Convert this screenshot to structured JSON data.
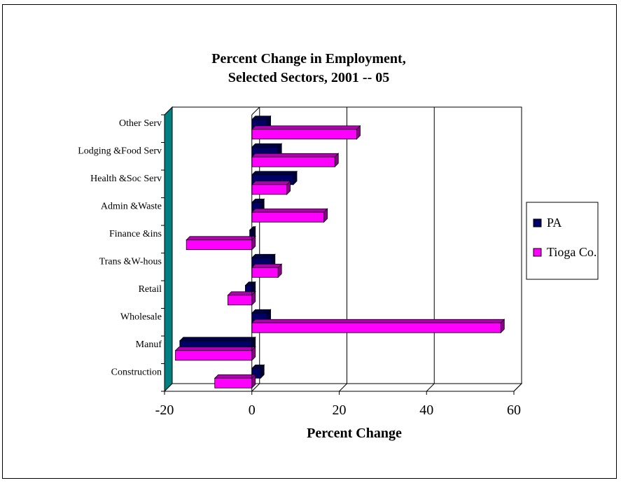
{
  "chart_data": {
    "type": "bar",
    "orientation": "horizontal",
    "title": [
      "Percent Change in Employment,",
      "Selected Sectors, 2001 -- 05"
    ],
    "xlabel": "Percent Change",
    "ylabel": "",
    "xlim": [
      -20,
      60
    ],
    "xticks": [
      -20,
      0,
      20,
      40,
      60
    ],
    "grid": true,
    "legend_position": "right",
    "categories": [
      "Other Serv",
      "Lodging &Food Serv",
      "Health &Soc Serv",
      "Admin &Waste",
      "Finance &ins",
      "Trans &W-hous",
      "Retail",
      "Wholesale",
      "Manuf",
      "Construction"
    ],
    "series": [
      {
        "name": "PA",
        "color": "#000066",
        "values": [
          3.5,
          6,
          9.5,
          2,
          -0.5,
          4.5,
          -1.5,
          3.5,
          -16.5,
          2
        ]
      },
      {
        "name": "Tioga Co.",
        "color": "#FF00FF",
        "values": [
          24,
          19,
          8,
          16.5,
          -15,
          6,
          -5.5,
          57,
          -17.5,
          -8.5
        ]
      }
    ]
  }
}
